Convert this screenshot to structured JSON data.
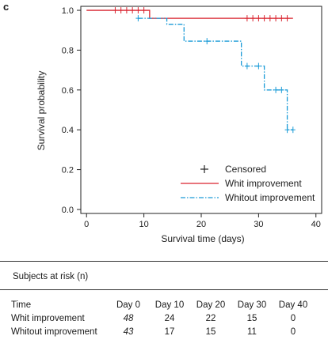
{
  "panel_label": "c",
  "colors": {
    "series_with": "#d9232e",
    "series_without": "#1a9bd7",
    "axis": "#222222",
    "censor_mark": "#222222"
  },
  "chart_data": {
    "type": "line",
    "subtype": "kaplan-meier-step",
    "xlabel": "Survival time (days)",
    "ylabel": "Survival probability",
    "xlim": [
      -1,
      41
    ],
    "ylim": [
      -0.02,
      1.02
    ],
    "x_ticks": [
      0,
      10,
      20,
      30,
      40
    ],
    "y_ticks": [
      0.0,
      0.2,
      0.4,
      0.6,
      0.8,
      1.0
    ],
    "x_tick_labels": [
      "0",
      "10",
      "20",
      "30",
      "40"
    ],
    "y_tick_labels": [
      "0.0",
      "0.2",
      "0.4",
      "0.6",
      "0.8",
      "1.0"
    ],
    "grid": false,
    "legend_position": "bottom-right",
    "legend": [
      {
        "label": "Censored",
        "marker": "plus"
      },
      {
        "label": "Whit improvement",
        "line": "solid"
      },
      {
        "label": "Whitout improvement",
        "line": "dash-dot"
      }
    ],
    "series": [
      {
        "name": "Whit improvement",
        "line": "solid",
        "steps": [
          [
            0,
            1.0
          ],
          [
            11,
            1.0
          ],
          [
            11,
            0.96
          ],
          [
            36,
            0.96
          ]
        ],
        "censored": [
          [
            5,
            1.0
          ],
          [
            6,
            1.0
          ],
          [
            7,
            1.0
          ],
          [
            8,
            1.0
          ],
          [
            9,
            1.0
          ],
          [
            10,
            1.0
          ],
          [
            28,
            0.96
          ],
          [
            29,
            0.96
          ],
          [
            30,
            0.96
          ],
          [
            31,
            0.96
          ],
          [
            32,
            0.96
          ],
          [
            33,
            0.96
          ],
          [
            34,
            0.96
          ],
          [
            35,
            0.96
          ]
        ]
      },
      {
        "name": "Whitout improvement",
        "line": "dash-dot",
        "steps": [
          [
            9,
            0.96
          ],
          [
            14,
            0.96
          ],
          [
            14,
            0.93
          ],
          [
            17,
            0.93
          ],
          [
            17,
            0.845
          ],
          [
            27,
            0.845
          ],
          [
            27,
            0.72
          ],
          [
            31,
            0.72
          ],
          [
            31,
            0.6
          ],
          [
            35,
            0.6
          ],
          [
            35,
            0.4
          ],
          [
            36,
            0.4
          ]
        ],
        "censored": [
          [
            9,
            0.96
          ],
          [
            21,
            0.845
          ],
          [
            28,
            0.72
          ],
          [
            30,
            0.72
          ],
          [
            33,
            0.6
          ],
          [
            34,
            0.6
          ],
          [
            35,
            0.4
          ],
          [
            36,
            0.4
          ]
        ]
      }
    ]
  },
  "risk_table": {
    "title": "Subjects at risk (n)",
    "header_label": "Time",
    "columns": [
      "Day 0",
      "Day 10",
      "Day 20",
      "Day 30",
      "Day 40"
    ],
    "rows": [
      {
        "label": "Whit improvement",
        "values": [
          "48",
          "24",
          "22",
          "15",
          "0"
        ]
      },
      {
        "label": "Whitout improvement",
        "values": [
          "43",
          "17",
          "15",
          "11",
          "0"
        ]
      }
    ]
  }
}
